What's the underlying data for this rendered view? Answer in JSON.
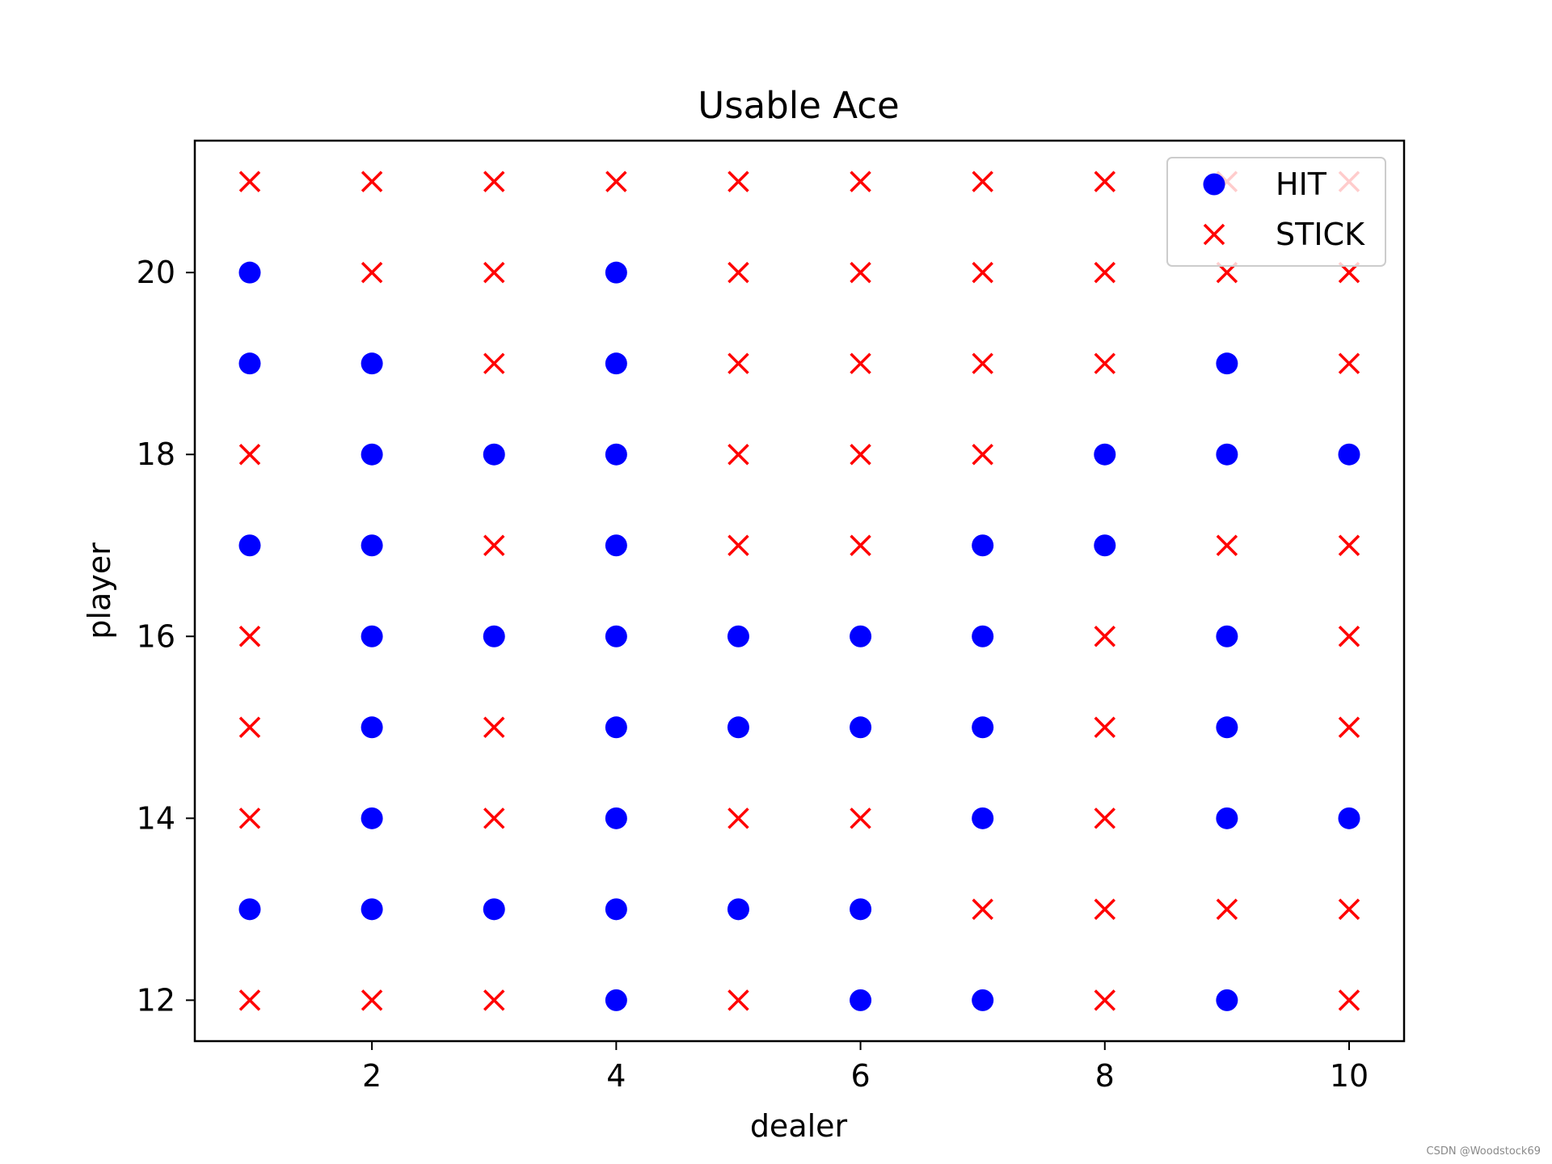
{
  "chart_data": {
    "type": "scatter",
    "title": "Usable Ace",
    "xlabel": "dealer",
    "ylabel": "player",
    "xlim": [
      0.55,
      10.45
    ],
    "ylim": [
      11.55,
      21.45
    ],
    "xticks": [
      2,
      4,
      6,
      8,
      10
    ],
    "yticks": [
      12,
      14,
      16,
      18,
      20
    ],
    "grid": false,
    "legend_position": "top-right",
    "series": [
      {
        "name": "HIT",
        "marker": "circle",
        "color": "#0000ff",
        "points": [
          [
            1,
            20
          ],
          [
            1,
            19
          ],
          [
            1,
            17
          ],
          [
            1,
            13
          ],
          [
            2,
            19
          ],
          [
            2,
            18
          ],
          [
            2,
            17
          ],
          [
            2,
            16
          ],
          [
            2,
            15
          ],
          [
            2,
            14
          ],
          [
            2,
            13
          ],
          [
            3,
            18
          ],
          [
            3,
            16
          ],
          [
            3,
            13
          ],
          [
            4,
            20
          ],
          [
            4,
            19
          ],
          [
            4,
            18
          ],
          [
            4,
            17
          ],
          [
            4,
            16
          ],
          [
            4,
            15
          ],
          [
            4,
            14
          ],
          [
            4,
            13
          ],
          [
            4,
            12
          ],
          [
            5,
            16
          ],
          [
            5,
            15
          ],
          [
            5,
            13
          ],
          [
            6,
            16
          ],
          [
            6,
            15
          ],
          [
            6,
            13
          ],
          [
            6,
            12
          ],
          [
            7,
            17
          ],
          [
            7,
            16
          ],
          [
            7,
            15
          ],
          [
            7,
            14
          ],
          [
            7,
            12
          ],
          [
            8,
            18
          ],
          [
            8,
            17
          ],
          [
            9,
            19
          ],
          [
            9,
            18
          ],
          [
            9,
            16
          ],
          [
            9,
            15
          ],
          [
            9,
            14
          ],
          [
            9,
            12
          ],
          [
            10,
            18
          ],
          [
            10,
            14
          ]
        ]
      },
      {
        "name": "STICK",
        "marker": "x",
        "color": "#ff0000",
        "points": [
          [
            1,
            21
          ],
          [
            1,
            18
          ],
          [
            1,
            16
          ],
          [
            1,
            15
          ],
          [
            1,
            14
          ],
          [
            1,
            12
          ],
          [
            2,
            21
          ],
          [
            2,
            20
          ],
          [
            2,
            12
          ],
          [
            3,
            21
          ],
          [
            3,
            20
          ],
          [
            3,
            19
          ],
          [
            3,
            17
          ],
          [
            3,
            15
          ],
          [
            3,
            14
          ],
          [
            3,
            12
          ],
          [
            4,
            21
          ],
          [
            5,
            21
          ],
          [
            5,
            20
          ],
          [
            5,
            19
          ],
          [
            5,
            18
          ],
          [
            5,
            17
          ],
          [
            5,
            14
          ],
          [
            5,
            12
          ],
          [
            6,
            21
          ],
          [
            6,
            20
          ],
          [
            6,
            19
          ],
          [
            6,
            18
          ],
          [
            6,
            17
          ],
          [
            6,
            14
          ],
          [
            7,
            21
          ],
          [
            7,
            20
          ],
          [
            7,
            19
          ],
          [
            7,
            18
          ],
          [
            7,
            13
          ],
          [
            8,
            21
          ],
          [
            8,
            20
          ],
          [
            8,
            19
          ],
          [
            8,
            16
          ],
          [
            8,
            15
          ],
          [
            8,
            14
          ],
          [
            8,
            13
          ],
          [
            8,
            12
          ],
          [
            9,
            21
          ],
          [
            9,
            20
          ],
          [
            9,
            17
          ],
          [
            9,
            13
          ],
          [
            10,
            21
          ],
          [
            10,
            20
          ],
          [
            10,
            19
          ],
          [
            10,
            17
          ],
          [
            10,
            16
          ],
          [
            10,
            15
          ],
          [
            10,
            13
          ],
          [
            10,
            12
          ]
        ]
      }
    ]
  },
  "watermark": "CSDN @Woodstock69"
}
